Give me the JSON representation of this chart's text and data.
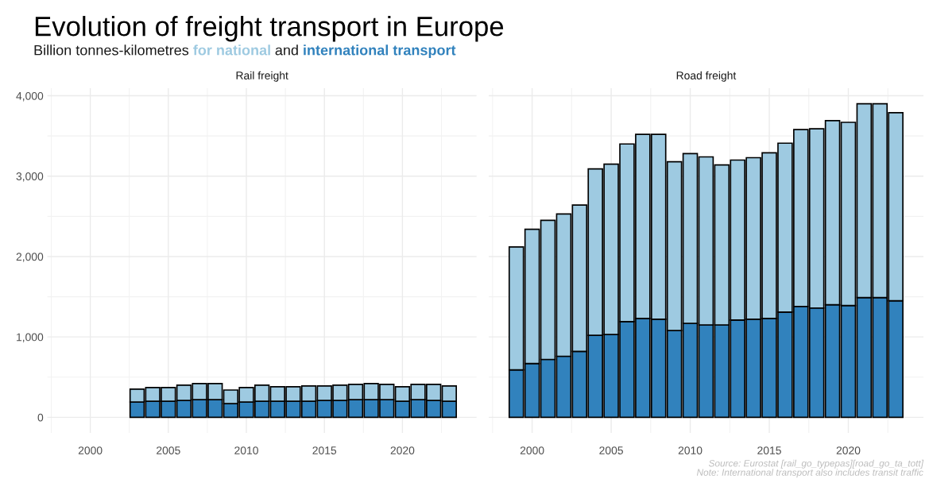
{
  "chart_data": [
    {
      "type": "bar",
      "stacked": true,
      "title": "Rail freight",
      "annotations": [
        "Evolution of freight transport in Europe",
        "Billion tonnes-kilometres",
        "and"
      ],
      "x": [
        2003,
        2004,
        2005,
        2006,
        2007,
        2008,
        2009,
        2010,
        2011,
        2012,
        2013,
        2014,
        2015,
        2016,
        2017,
        2018,
        2019,
        2020,
        2021,
        2022,
        2023
      ],
      "series": [
        {
          "name": "international transport",
          "color": "#3182bd",
          "values": [
            190,
            200,
            200,
            210,
            220,
            220,
            170,
            190,
            200,
            200,
            200,
            200,
            210,
            210,
            220,
            220,
            220,
            200,
            220,
            210,
            200
          ]
        },
        {
          "name": "for national",
          "color": "#9ecae1",
          "values": [
            160,
            170,
            170,
            190,
            200,
            200,
            170,
            180,
            200,
            180,
            180,
            190,
            180,
            190,
            190,
            200,
            190,
            180,
            190,
            200,
            190
          ]
        }
      ],
      "xlim": [
        1997.25,
        2024.75
      ],
      "xticks": [
        2000,
        2005,
        2010,
        2015,
        2020
      ],
      "ylim": [
        -195,
        4095
      ],
      "yticks": [
        {
          "value": 0,
          "label": "0"
        },
        {
          "value": 1000,
          "label": "1,000"
        },
        {
          "value": 2000,
          "label": "2,000"
        },
        {
          "value": 3000,
          "label": "3,000"
        },
        {
          "value": 4000,
          "label": "4,000"
        }
      ],
      "grid": true,
      "legend": false
    },
    {
      "type": "bar",
      "stacked": true,
      "title": "Road freight",
      "annotations": [
        "Source: Eurostat [rail_go_typepas][road_go_ta_tott]",
        "Note: International transport also includes transit traffic"
      ],
      "x": [
        1999,
        2000,
        2001,
        2002,
        2003,
        2004,
        2005,
        2006,
        2007,
        2008,
        2009,
        2010,
        2011,
        2012,
        2013,
        2014,
        2015,
        2016,
        2017,
        2018,
        2019,
        2020,
        2021,
        2022,
        2023
      ],
      "series": [
        {
          "color": "#3182bd",
          "values": [
            590,
            670,
            720,
            760,
            820,
            1020,
            1030,
            1190,
            1230,
            1220,
            1080,
            1170,
            1150,
            1150,
            1210,
            1220,
            1230,
            1310,
            1380,
            1360,
            1400,
            1390,
            1490,
            1490,
            1450
          ]
        },
        {
          "color": "#9ecae1",
          "values": [
            1530,
            1670,
            1730,
            1770,
            1820,
            2070,
            2120,
            2210,
            2290,
            2300,
            2100,
            2110,
            2090,
            1990,
            1990,
            2010,
            2060,
            2100,
            2200,
            2230,
            2290,
            2280,
            2410,
            2410,
            2340
          ]
        }
      ],
      "xlim": [
        1997.25,
        2024.75
      ],
      "xticks": [
        2000,
        2005,
        2010,
        2015,
        2020
      ],
      "ylim": [
        -195,
        4095
      ],
      "yticks": [
        0,
        1000,
        2000,
        3000,
        4000
      ],
      "tick_labels": "x",
      "grid": true,
      "legend": false
    }
  ]
}
